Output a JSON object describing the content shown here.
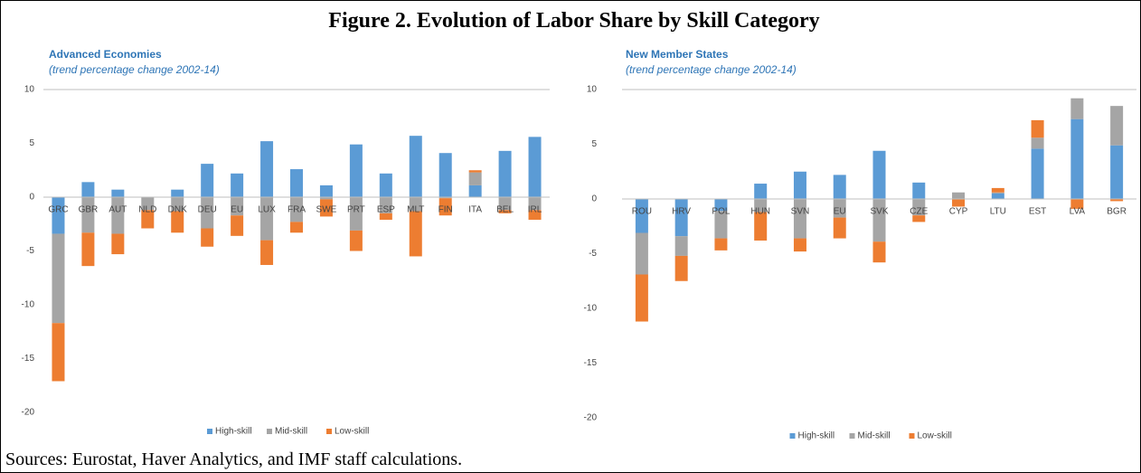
{
  "figure_title": "Figure 2. Evolution of Labor Share by Skill Category",
  "source": "Sources: Eurostat, Haver Analytics, and IMF staff calculations.",
  "chart_data": [
    {
      "type": "bar",
      "stacked": true,
      "title": "Advanced Economies",
      "subtitle": "(trend percentage change 2002-14)",
      "categories": [
        "GRC",
        "GBR",
        "AUT",
        "NLD",
        "DNK",
        "DEU",
        "EU",
        "LUX",
        "FRA",
        "SWE",
        "PRT",
        "ESP",
        "MLT",
        "FIN",
        "ITA",
        "BEL",
        "IRL"
      ],
      "series": [
        {
          "name": "High-skill",
          "color": "#5b9bd5",
          "values": [
            -3.4,
            1.4,
            0.7,
            0,
            0.7,
            3.1,
            2.2,
            5.2,
            2.6,
            1.1,
            4.9,
            2.2,
            5.7,
            4.1,
            1.1,
            4.3,
            5.6
          ]
        },
        {
          "name": "Mid-skill",
          "color": "#a5a5a5",
          "values": [
            -8.3,
            -3.3,
            -3.4,
            -1.2,
            -1.3,
            -2.9,
            -1.7,
            -4.0,
            -2.3,
            -0.2,
            -3.1,
            -1.5,
            -1.3,
            -0.1,
            1.2,
            -1.2,
            -1.2
          ]
        },
        {
          "name": "Low-skill",
          "color": "#ed7d31",
          "values": [
            -5.4,
            -3.1,
            -1.9,
            -1.7,
            -2.0,
            -1.7,
            -1.9,
            -2.3,
            -1.0,
            -1.6,
            -1.9,
            -0.6,
            -4.2,
            -1.6,
            0.2,
            -0.3,
            -0.9
          ]
        }
      ],
      "ylim": [
        -20,
        10
      ],
      "yticks": [
        -20,
        -15,
        -10,
        -5,
        0,
        5,
        10
      ],
      "legend": "bottom"
    },
    {
      "type": "bar",
      "stacked": true,
      "title": "New Member States",
      "subtitle": "(trend percentage change 2002-14)",
      "categories": [
        "ROU",
        "HRV",
        "POL",
        "HUN",
        "SVN",
        "EU",
        "SVK",
        "CZE",
        "CYP",
        "LTU",
        "EST",
        "LVA",
        "BGR"
      ],
      "series": [
        {
          "name": "High-skill",
          "color": "#5b9bd5",
          "values": [
            -3.1,
            -3.4,
            -1.1,
            1.4,
            2.5,
            2.2,
            4.4,
            1.5,
            0,
            0.5,
            4.6,
            7.3,
            4.9
          ]
        },
        {
          "name": "Mid-skill",
          "color": "#a5a5a5",
          "values": [
            -3.8,
            -1.8,
            -2.5,
            -1.2,
            -3.6,
            -1.7,
            -3.9,
            -1.5,
            0.6,
            0.1,
            1.0,
            1.9,
            3.6
          ]
        },
        {
          "name": "Low-skill",
          "color": "#ed7d31",
          "values": [
            -4.3,
            -2.3,
            -1.1,
            -2.6,
            -1.2,
            -1.9,
            -1.9,
            -0.6,
            -0.7,
            0.4,
            1.6,
            -0.9,
            -0.2
          ]
        }
      ],
      "ylim": [
        -20,
        10
      ],
      "yticks": [
        -20,
        -15,
        -10,
        -5,
        0,
        5,
        10
      ],
      "legend": "bottom"
    }
  ]
}
